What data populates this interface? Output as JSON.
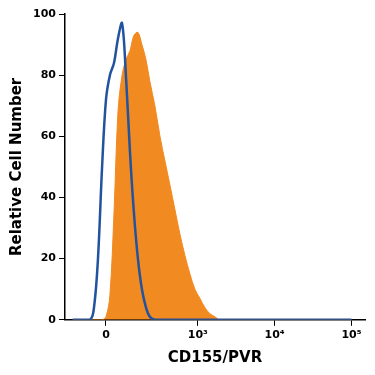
{
  "chart_data": {
    "type": "line",
    "x_label": "CD155/PVR",
    "y_label": "Relative Cell Number",
    "x": [
      -150,
      -64,
      -47,
      -31,
      -15,
      0,
      15,
      31,
      47,
      64,
      81,
      100,
      120,
      142,
      166,
      193,
      221,
      262,
      310,
      363,
      426,
      497,
      580,
      676,
      787,
      915,
      1064,
      1236,
      1437,
      1670,
      1940,
      100000
    ],
    "series": [
      {
        "type": "area",
        "color": "#f28a22",
        "values": [
          0,
          0,
          0,
          0,
          0,
          1,
          8,
          35,
          68,
          80,
          85,
          88,
          93,
          94,
          90,
          85,
          78,
          70,
          60,
          52,
          44,
          36,
          28,
          21,
          15,
          10,
          7,
          4,
          2,
          1,
          0,
          0
        ]
      },
      {
        "type": "line",
        "color": "#22539e",
        "values": [
          0,
          0,
          4,
          20,
          50,
          72,
          80,
          84,
          92,
          97,
          80,
          55,
          35,
          20,
          10,
          4,
          1,
          0,
          0,
          0,
          0,
          0,
          0,
          0,
          0,
          0,
          0,
          0,
          0,
          0,
          0,
          0
        ]
      }
    ],
    "xlim": [
      -200,
      150000
    ],
    "xticks": [
      0,
      {
        "value": 1000,
        "label": "10³"
      },
      {
        "value": 10000,
        "label": "10⁴"
      },
      {
        "value": 100000,
        "label": "10⁵"
      }
    ],
    "ylim": [
      0,
      100
    ],
    "yticks": [
      0,
      20,
      40,
      60,
      80,
      100
    ],
    "grid": false
  }
}
